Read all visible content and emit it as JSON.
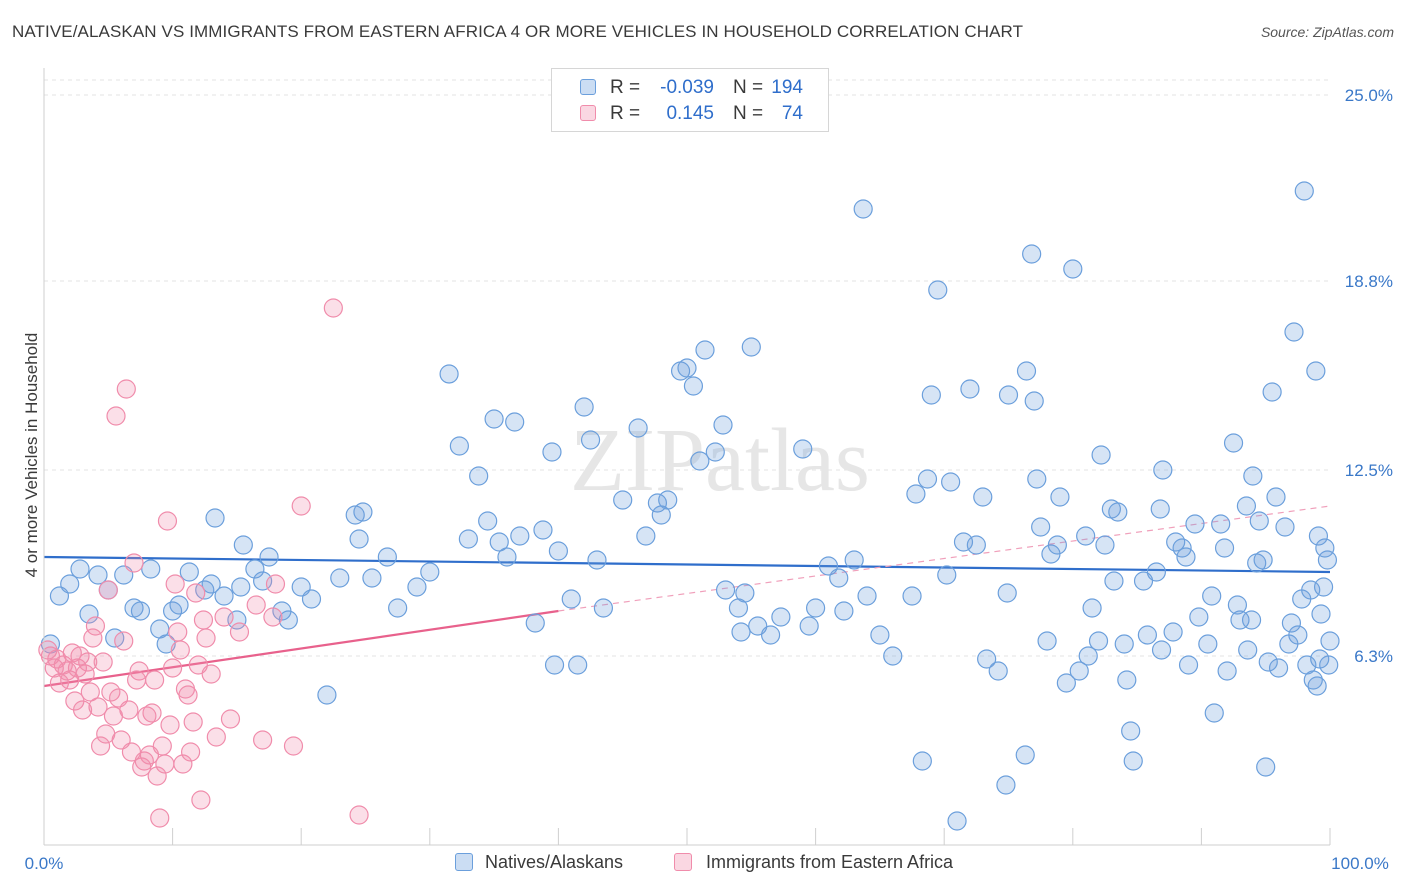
{
  "title": "NATIVE/ALASKAN VS IMMIGRANTS FROM EASTERN AFRICA 4 OR MORE VEHICLES IN HOUSEHOLD CORRELATION CHART",
  "source": "Source: ZipAtlas.com",
  "watermark": "ZIPatlas",
  "legend": {
    "r_label": "R =",
    "n_label": "N =",
    "rows": [
      {
        "r": "-0.039",
        "n": "194",
        "color": "#6b9fdc"
      },
      {
        "r": "0.145",
        "n": "74",
        "color": "#f08cab"
      }
    ]
  },
  "bottom_legend": [
    {
      "label": "Natives/Alaskans",
      "color": "#6b9fdc"
    },
    {
      "label": "Immigrants from Eastern Africa",
      "color": "#f08cab"
    }
  ],
  "chart_data": {
    "type": "scatter",
    "title": "NATIVE/ALASKAN VS IMMIGRANTS FROM EASTERN AFRICA 4 OR MORE VEHICLES IN HOUSEHOLD CORRELATION CHART",
    "xlabel": "",
    "ylabel": "4 or more Vehicles in Household",
    "xlim": [
      0,
      100
    ],
    "ylim": [
      0,
      25.5
    ],
    "x_tick_labels": [
      "0.0%",
      "100.0%"
    ],
    "y_ticks": [
      6.3,
      12.5,
      18.8,
      25.0
    ],
    "y_tick_labels": [
      "6.3%",
      "12.5%",
      "18.8%",
      "25.0%"
    ],
    "grid": true,
    "legend_position": "top-center",
    "series": [
      {
        "name": "Natives/Alaskans",
        "color": "#6b9fdc",
        "trend": {
          "x": [
            0,
            100
          ],
          "y": [
            9.6,
            9.1
          ]
        },
        "points": [
          [
            0.5,
            6.7
          ],
          [
            1.2,
            8.3
          ],
          [
            2,
            8.7
          ],
          [
            2.8,
            9.2
          ],
          [
            3.5,
            7.7
          ],
          [
            4.2,
            9.0
          ],
          [
            5,
            8.5
          ],
          [
            5.5,
            6.9
          ],
          [
            6.2,
            9.0
          ],
          [
            7,
            7.9
          ],
          [
            7.5,
            7.8
          ],
          [
            8.3,
            9.2
          ],
          [
            9,
            7.2
          ],
          [
            9.5,
            6.7
          ],
          [
            10,
            7.8
          ],
          [
            10.5,
            8.0
          ],
          [
            11.3,
            9.1
          ],
          [
            12.5,
            8.5
          ],
          [
            13,
            8.7
          ],
          [
            13.3,
            10.9
          ],
          [
            14,
            8.3
          ],
          [
            15,
            7.5
          ],
          [
            15.3,
            8.6
          ],
          [
            15.5,
            10.0
          ],
          [
            16.4,
            9.2
          ],
          [
            17,
            8.8
          ],
          [
            17.5,
            9.6
          ],
          [
            18.5,
            7.8
          ],
          [
            19,
            7.5
          ],
          [
            20,
            8.6
          ],
          [
            20.8,
            8.2
          ],
          [
            22,
            5.0
          ],
          [
            23,
            8.9
          ],
          [
            24.2,
            11.0
          ],
          [
            24.5,
            10.2
          ],
          [
            24.8,
            11.1
          ],
          [
            25.5,
            8.9
          ],
          [
            26.7,
            9.6
          ],
          [
            27.5,
            7.9
          ],
          [
            29,
            8.6
          ],
          [
            30,
            9.1
          ],
          [
            31.5,
            15.7
          ],
          [
            32.3,
            13.3
          ],
          [
            33,
            10.2
          ],
          [
            33.8,
            12.3
          ],
          [
            34.5,
            10.8
          ],
          [
            35,
            14.2
          ],
          [
            35.4,
            10.1
          ],
          [
            36,
            9.6
          ],
          [
            36.6,
            14.1
          ],
          [
            37,
            10.3
          ],
          [
            38.2,
            7.4
          ],
          [
            38.8,
            10.5
          ],
          [
            39.5,
            13.1
          ],
          [
            39.7,
            6.0
          ],
          [
            40,
            9.8
          ],
          [
            41,
            8.2
          ],
          [
            41.5,
            6.0
          ],
          [
            42,
            14.6
          ],
          [
            42.5,
            13.5
          ],
          [
            43,
            9.5
          ],
          [
            43.5,
            7.9
          ],
          [
            45,
            11.5
          ],
          [
            46.2,
            13.9
          ],
          [
            46.8,
            10.3
          ],
          [
            47.7,
            11.4
          ],
          [
            48,
            11.0
          ],
          [
            48.5,
            11.5
          ],
          [
            49.5,
            15.8
          ],
          [
            50,
            15.9
          ],
          [
            50.5,
            15.3
          ],
          [
            51,
            12.8
          ],
          [
            51.4,
            16.5
          ],
          [
            52.2,
            13.1
          ],
          [
            52.8,
            14.0
          ],
          [
            53,
            8.5
          ],
          [
            54,
            7.9
          ],
          [
            54.2,
            7.1
          ],
          [
            54.5,
            8.4
          ],
          [
            55,
            16.6
          ],
          [
            55.5,
            7.3
          ],
          [
            56.5,
            7.0
          ],
          [
            57.3,
            7.6
          ],
          [
            59,
            13.2
          ],
          [
            59.5,
            7.3
          ],
          [
            60,
            7.9
          ],
          [
            61,
            9.3
          ],
          [
            61.8,
            8.9
          ],
          [
            62.2,
            7.8
          ],
          [
            63,
            9.5
          ],
          [
            63.7,
            21.2
          ],
          [
            64,
            8.3
          ],
          [
            65,
            7.0
          ],
          [
            66,
            6.3
          ],
          [
            67.5,
            8.3
          ],
          [
            67.8,
            11.7
          ],
          [
            68.3,
            2.8
          ],
          [
            68.7,
            12.2
          ],
          [
            69,
            15.0
          ],
          [
            69.5,
            18.5
          ],
          [
            70.5,
            12.1
          ],
          [
            71,
            0.8
          ],
          [
            71.5,
            10.1
          ],
          [
            72,
            15.2
          ],
          [
            73,
            11.6
          ],
          [
            73.3,
            6.2
          ],
          [
            74.8,
            2.0
          ],
          [
            74.9,
            8.4
          ],
          [
            75,
            15.0
          ],
          [
            76.3,
            3.0
          ],
          [
            76.4,
            15.8
          ],
          [
            77,
            14.8
          ],
          [
            77.2,
            12.2
          ],
          [
            77.5,
            10.6
          ],
          [
            78,
            6.8
          ],
          [
            78.3,
            9.7
          ],
          [
            79,
            11.6
          ],
          [
            80,
            19.2
          ],
          [
            80.5,
            5.8
          ],
          [
            81,
            10.3
          ],
          [
            81.5,
            7.9
          ],
          [
            82,
            6.8
          ],
          [
            82.2,
            13.0
          ],
          [
            83,
            11.2
          ],
          [
            83.5,
            11.1
          ],
          [
            84,
            6.7
          ],
          [
            84.5,
            3.8
          ],
          [
            84.7,
            2.8
          ],
          [
            85.5,
            8.8
          ],
          [
            86.5,
            9.1
          ],
          [
            86.9,
            6.5
          ],
          [
            87,
            12.5
          ],
          [
            88,
            10.1
          ],
          [
            88.5,
            9.9
          ],
          [
            89,
            6.0
          ],
          [
            89.5,
            10.7
          ],
          [
            90.5,
            6.7
          ],
          [
            91,
            4.4
          ],
          [
            91.5,
            10.7
          ],
          [
            92,
            5.8
          ],
          [
            92.5,
            13.4
          ],
          [
            93,
            7.5
          ],
          [
            93.5,
            11.3
          ],
          [
            94,
            12.3
          ],
          [
            94.5,
            10.8
          ],
          [
            95,
            2.6
          ],
          [
            95.5,
            15.1
          ],
          [
            96,
            5.9
          ],
          [
            97,
            7.4
          ],
          [
            97.5,
            7.0
          ],
          [
            98,
            21.8
          ],
          [
            98.5,
            8.5
          ],
          [
            99,
            5.3
          ],
          [
            99.2,
            6.2
          ],
          [
            99.5,
            8.6
          ],
          [
            99.8,
            9.5
          ],
          [
            100,
            6.8
          ],
          [
            93.6,
            6.5
          ],
          [
            94.3,
            9.4
          ],
          [
            95.8,
            11.6
          ],
          [
            96.5,
            10.6
          ],
          [
            97.2,
            17.1
          ],
          [
            97.8,
            8.2
          ],
          [
            98.2,
            6.0
          ],
          [
            98.7,
            5.5
          ],
          [
            99.1,
            10.3
          ],
          [
            99.6,
            9.9
          ],
          [
            99.9,
            6.0
          ],
          [
            99.3,
            7.7
          ],
          [
            98.9,
            15.8
          ],
          [
            96.8,
            6.7
          ],
          [
            95.2,
            6.1
          ],
          [
            94.8,
            9.5
          ],
          [
            93.9,
            7.5
          ],
          [
            92.8,
            8.0
          ],
          [
            91.8,
            9.9
          ],
          [
            90.8,
            8.3
          ],
          [
            89.8,
            7.6
          ],
          [
            88.8,
            9.6
          ],
          [
            87.8,
            7.1
          ],
          [
            86.8,
            11.2
          ],
          [
            85.8,
            7.0
          ],
          [
            84.2,
            5.5
          ],
          [
            83.2,
            8.8
          ],
          [
            82.5,
            10.0
          ],
          [
            81.2,
            6.3
          ],
          [
            79.5,
            5.4
          ],
          [
            78.8,
            10.0
          ],
          [
            76.8,
            19.7
          ],
          [
            74.2,
            5.8
          ],
          [
            72.5,
            10.0
          ],
          [
            70.2,
            9.0
          ]
        ]
      },
      {
        "name": "Immigrants from Eastern Africa",
        "color": "#f08cab",
        "trend": {
          "x": [
            0,
            40
          ],
          "y": [
            5.3,
            7.8
          ]
        },
        "trend_dashed": {
          "x": [
            40,
            100
          ],
          "y": [
            7.8,
            11.3
          ]
        },
        "points": [
          [
            0.3,
            6.5
          ],
          [
            0.5,
            6.3
          ],
          [
            0.8,
            5.9
          ],
          [
            1,
            6.2
          ],
          [
            1.2,
            5.4
          ],
          [
            1.5,
            6.0
          ],
          [
            1.8,
            5.8
          ],
          [
            2,
            5.5
          ],
          [
            2.2,
            6.4
          ],
          [
            2.4,
            4.8
          ],
          [
            2.6,
            5.9
          ],
          [
            2.8,
            6.3
          ],
          [
            3,
            4.5
          ],
          [
            3.2,
            5.7
          ],
          [
            3.4,
            6.1
          ],
          [
            3.6,
            5.1
          ],
          [
            3.8,
            6.9
          ],
          [
            4,
            7.3
          ],
          [
            4.2,
            4.6
          ],
          [
            4.4,
            3.3
          ],
          [
            4.6,
            6.1
          ],
          [
            4.8,
            3.7
          ],
          [
            5,
            8.5
          ],
          [
            5.2,
            5.1
          ],
          [
            5.4,
            4.3
          ],
          [
            5.6,
            14.3
          ],
          [
            5.8,
            4.9
          ],
          [
            6,
            3.5
          ],
          [
            6.2,
            6.8
          ],
          [
            6.4,
            15.2
          ],
          [
            6.6,
            4.5
          ],
          [
            6.8,
            3.1
          ],
          [
            7,
            9.4
          ],
          [
            7.2,
            5.5
          ],
          [
            7.4,
            5.8
          ],
          [
            7.6,
            2.6
          ],
          [
            7.8,
            2.8
          ],
          [
            8,
            4.3
          ],
          [
            8.2,
            3.0
          ],
          [
            8.4,
            4.4
          ],
          [
            8.6,
            5.5
          ],
          [
            8.8,
            2.3
          ],
          [
            9,
            0.9
          ],
          [
            9.2,
            3.3
          ],
          [
            9.4,
            2.7
          ],
          [
            9.6,
            10.8
          ],
          [
            9.8,
            4.0
          ],
          [
            10,
            5.9
          ],
          [
            10.2,
            8.7
          ],
          [
            10.4,
            7.1
          ],
          [
            10.6,
            6.5
          ],
          [
            10.8,
            2.7
          ],
          [
            11,
            5.2
          ],
          [
            11.2,
            5.0
          ],
          [
            11.4,
            3.1
          ],
          [
            11.6,
            4.1
          ],
          [
            11.8,
            8.4
          ],
          [
            12,
            6.0
          ],
          [
            12.2,
            1.5
          ],
          [
            12.4,
            7.5
          ],
          [
            12.6,
            6.9
          ],
          [
            13,
            5.7
          ],
          [
            13.4,
            3.6
          ],
          [
            14,
            7.6
          ],
          [
            14.5,
            4.2
          ],
          [
            15.2,
            7.1
          ],
          [
            17,
            3.5
          ],
          [
            18,
            8.7
          ],
          [
            19.4,
            3.3
          ],
          [
            20,
            11.3
          ],
          [
            22.5,
            17.9
          ],
          [
            24.5,
            1.0
          ],
          [
            17.8,
            7.6
          ],
          [
            16.5,
            8.0
          ]
        ]
      }
    ]
  }
}
